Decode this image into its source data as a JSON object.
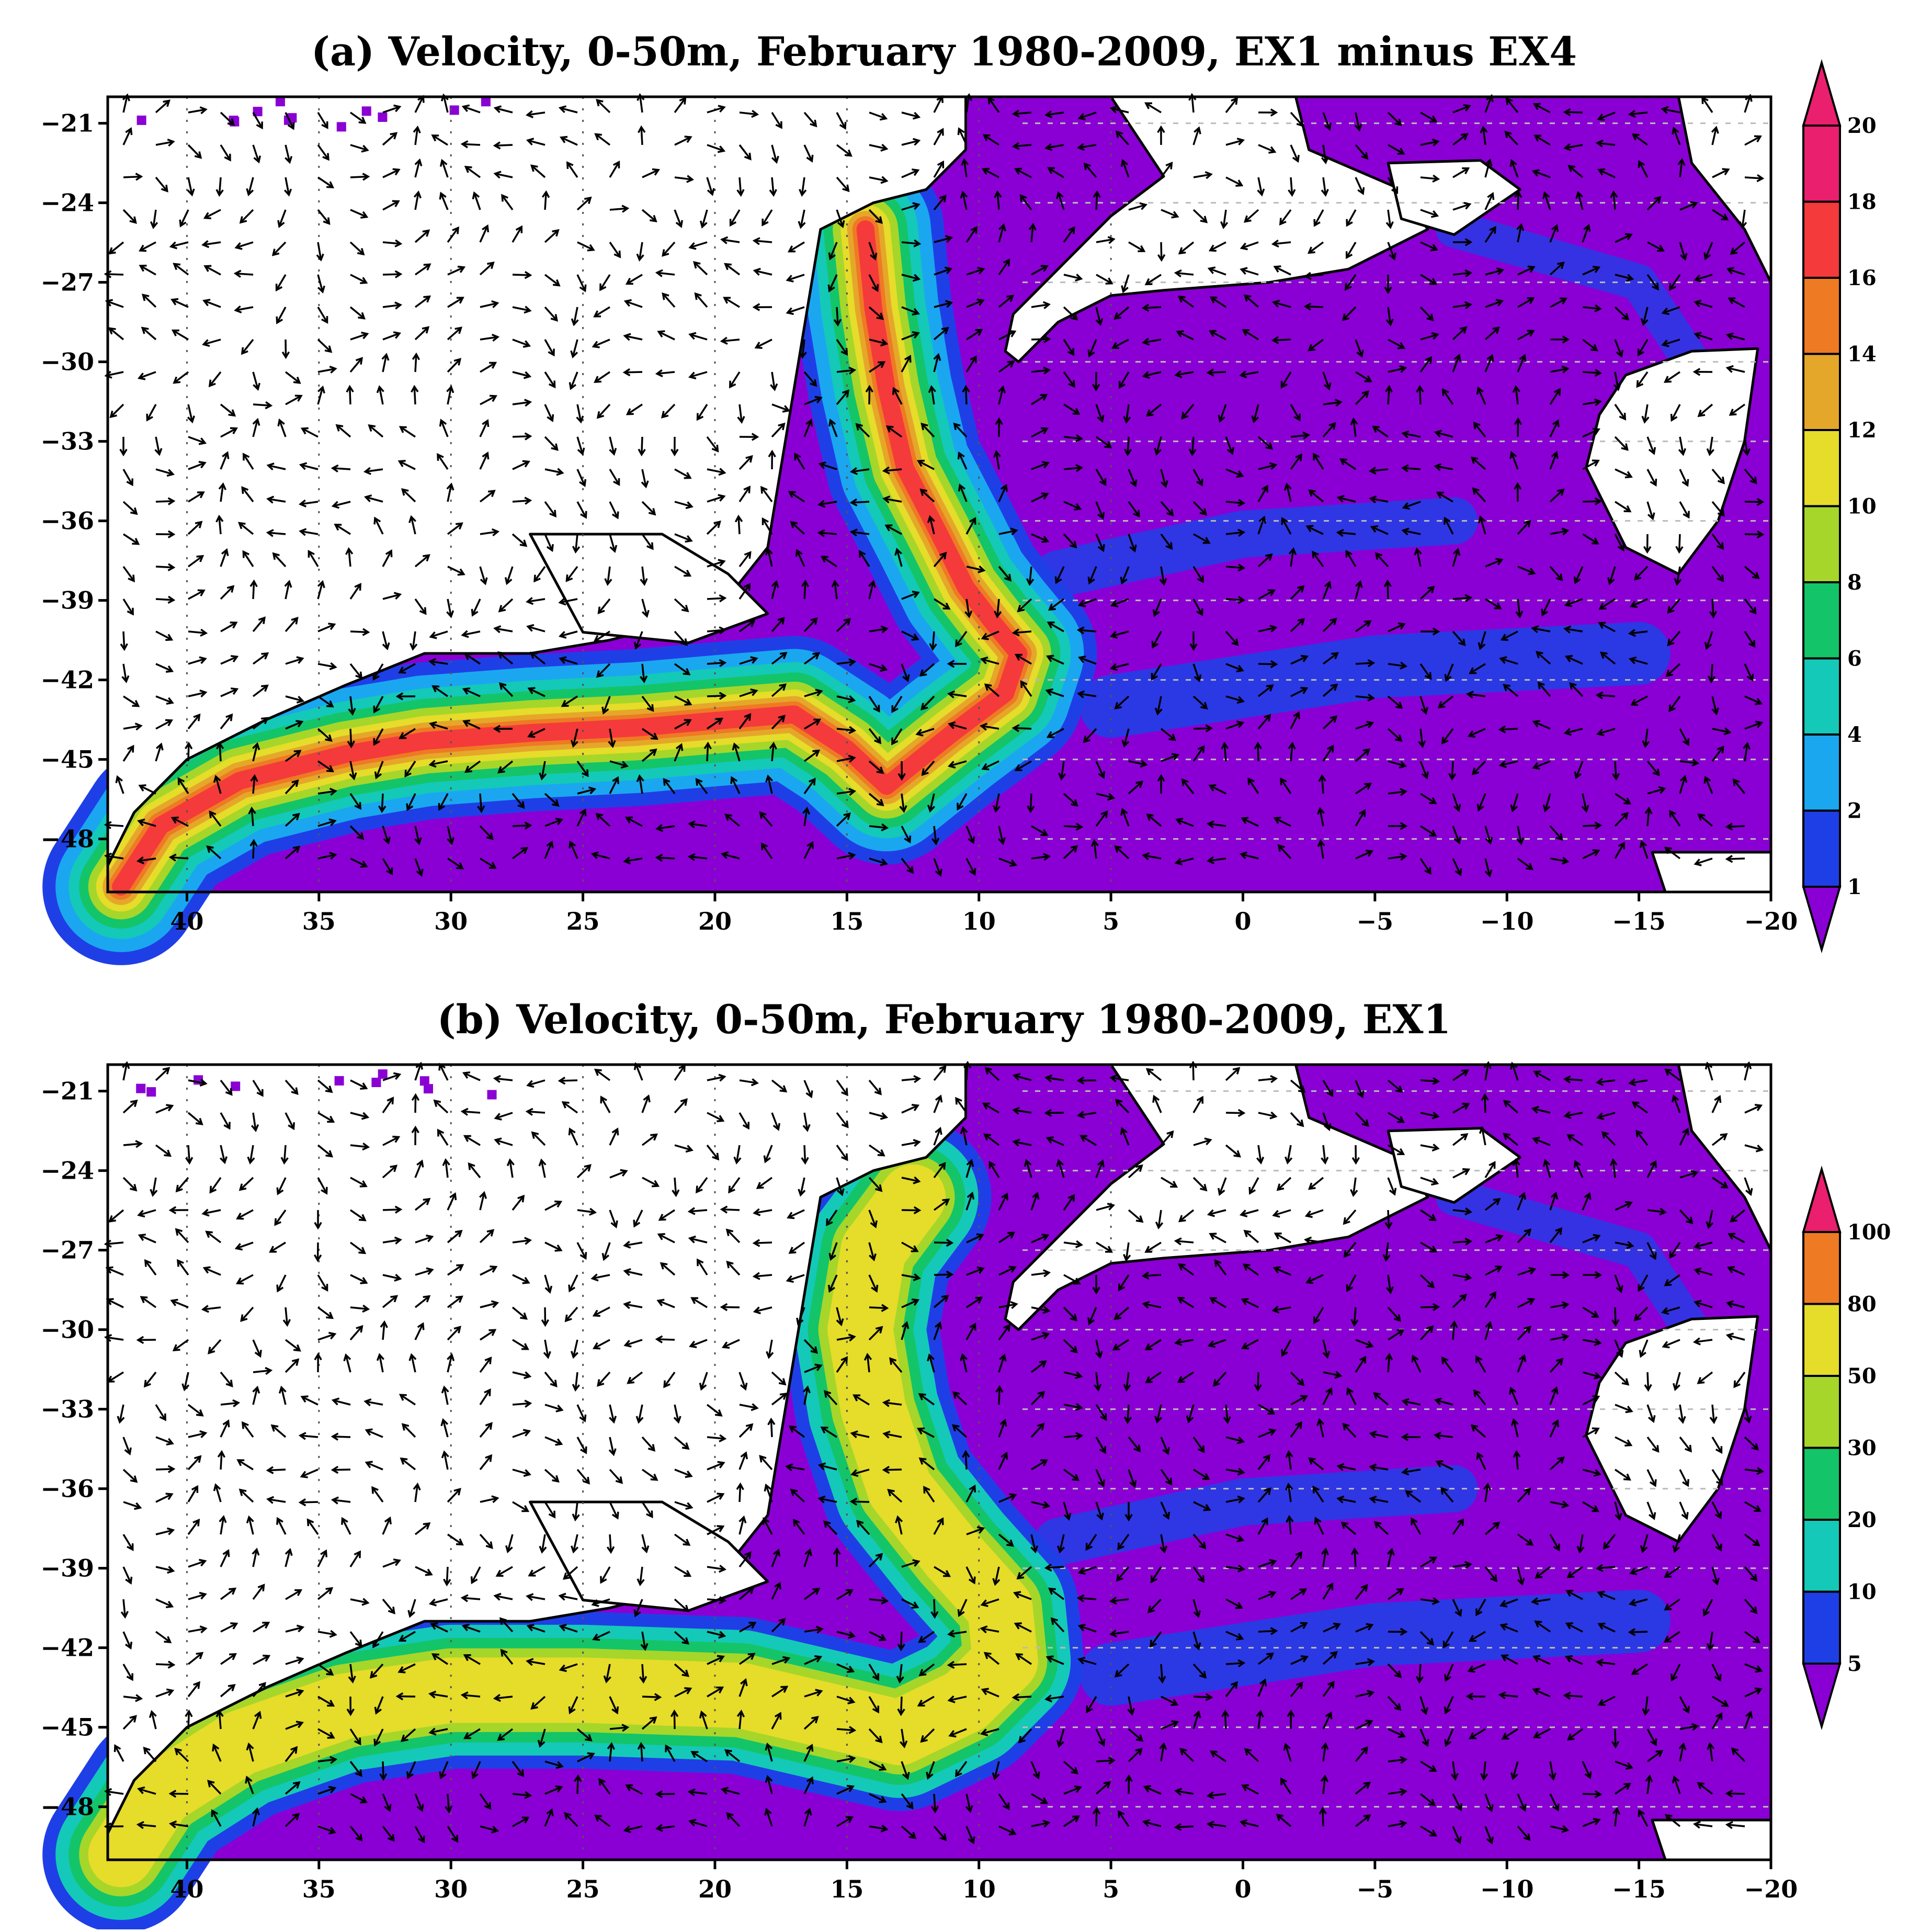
{
  "chart_data": [
    {
      "type": "heatmap",
      "title": "(a) Velocity, 0-50m, February 1980-2009, EX1 minus EX4",
      "x_ticks": [
        "40",
        "35",
        "30",
        "25",
        "20",
        "15",
        "10",
        "5",
        "0",
        "-5",
        "-10",
        "-15",
        "-20"
      ],
      "y_ticks": [
        "-21",
        "-24",
        "-27",
        "-30",
        "-33",
        "-36",
        "-39",
        "-42",
        "-45",
        "-48"
      ],
      "xlim": [
        43,
        -20
      ],
      "ylim": [
        -50,
        -20
      ],
      "grid": "dotted",
      "colorbar": {
        "levels": [
          "1",
          "2",
          "4",
          "6",
          "8",
          "10",
          "12",
          "14",
          "16",
          "18",
          "20"
        ],
        "colors": [
          "#8a00d4",
          "#1f3fe6",
          "#1aa7f0",
          "#14c9b8",
          "#14c468",
          "#a6d62a",
          "#e6dc2a",
          "#e5a72a",
          "#ee7a24",
          "#f43a3a",
          "#ea1f6e"
        ],
        "extend": "both",
        "placement": "right"
      },
      "jet_path": [
        [
          42.5,
          -49.8
        ],
        [
          41,
          -47.5
        ],
        [
          38,
          -45.8
        ],
        [
          34,
          -44.8
        ],
        [
          31,
          -44.3
        ],
        [
          27,
          -44
        ],
        [
          23,
          -43.8
        ],
        [
          19.5,
          -43.5
        ],
        [
          17,
          -43.3
        ],
        [
          15,
          -44.6
        ],
        [
          13.5,
          -46
        ],
        [
          11,
          -44
        ],
        [
          9,
          -42.5
        ],
        [
          8.5,
          -41
        ],
        [
          9.5,
          -39.8
        ],
        [
          10.5,
          -38.5
        ],
        [
          11.5,
          -36.5
        ],
        [
          12.8,
          -34
        ],
        [
          13.5,
          -31
        ],
        [
          14,
          -28
        ],
        [
          14.3,
          -25
        ]
      ],
      "jet_strength": 0.88
    },
    {
      "type": "heatmap",
      "title": "(b) Velocity, 0-50m, February 1980-2009, EX1",
      "x_ticks": [
        "40",
        "35",
        "30",
        "25",
        "20",
        "15",
        "10",
        "5",
        "0",
        "-5",
        "-10",
        "-15",
        "-20"
      ],
      "y_ticks": [
        "-21",
        "-24",
        "-27",
        "-30",
        "-33",
        "-36",
        "-39",
        "-42",
        "-45",
        "-48"
      ],
      "xlim": [
        43,
        -20
      ],
      "ylim": [
        -50,
        -20
      ],
      "grid": "dotted",
      "colorbar": {
        "levels": [
          "5",
          "10",
          "20",
          "30",
          "50",
          "80",
          "100"
        ],
        "colors": [
          "#8a00d4",
          "#1f3fe6",
          "#14c9b8",
          "#14c468",
          "#a6d62a",
          "#e6dc2a",
          "#ee7a24",
          "#ea1f6e"
        ],
        "extend": "both",
        "placement": "right"
      },
      "jet_path": [
        [
          42.5,
          -49.8
        ],
        [
          41,
          -47.5
        ],
        [
          38,
          -45.6
        ],
        [
          34,
          -44.2
        ],
        [
          30,
          -43.6
        ],
        [
          25,
          -43.6
        ],
        [
          19,
          -43.8
        ],
        [
          16,
          -44.5
        ],
        [
          13,
          -45.2
        ],
        [
          10.5,
          -44
        ],
        [
          9,
          -42.5
        ],
        [
          9.2,
          -40.5
        ],
        [
          11,
          -38.5
        ],
        [
          13,
          -36
        ],
        [
          14,
          -33
        ],
        [
          14.5,
          -30
        ],
        [
          14,
          -27
        ],
        [
          12.5,
          -25
        ]
      ],
      "jet_strength": 0.72
    }
  ]
}
